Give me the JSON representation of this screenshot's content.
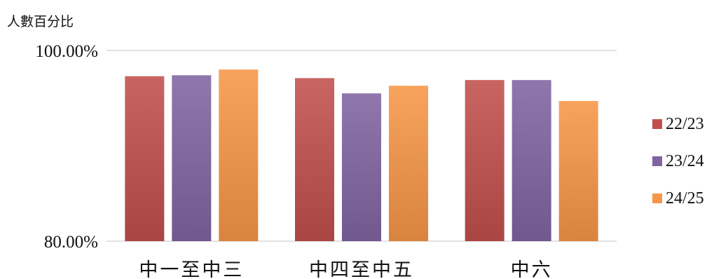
{
  "chart_data": {
    "type": "bar",
    "ylabel": "人數百分比",
    "ylim": [
      80,
      100
    ],
    "y_ticks": [
      "100.00%",
      "80.00%"
    ],
    "y_tick_values": [
      100,
      80
    ],
    "categories": [
      "中一至中三",
      "中四至中五",
      "中六"
    ],
    "series": [
      {
        "name": "22/23",
        "color": "#c0504d",
        "values": [
          97.3,
          97.1,
          96.9
        ]
      },
      {
        "name": "23/24",
        "color": "#8064a2",
        "values": [
          97.4,
          95.5,
          96.9
        ]
      },
      {
        "name": "24/25",
        "color": "#f79646",
        "values": [
          98.0,
          96.3,
          94.7
        ]
      }
    ],
    "grid": "horizontal",
    "legend_position": "right"
  }
}
